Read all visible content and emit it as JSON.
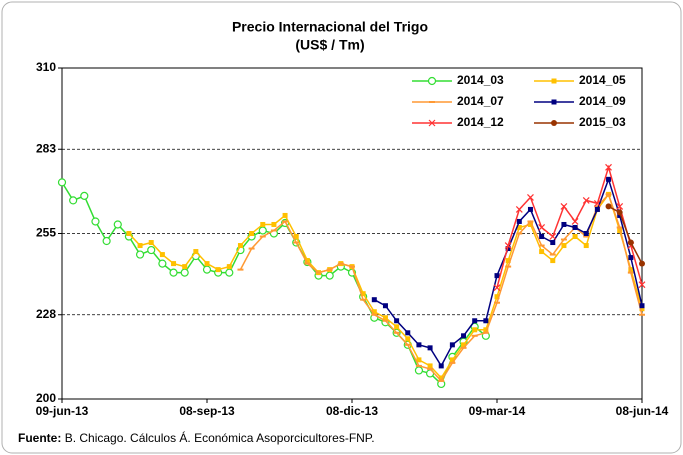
{
  "chart_data": {
    "type": "line",
    "title": "Precio Internacional del Trigo",
    "subtitle": "(US$ / Tm)",
    "source_label": "Fuente:",
    "source_text": "B. Chicago. Cálculos Á. Económica Asoporcicultores-FNP.",
    "categories": [
      "09-jun-13",
      null,
      null,
      null,
      null,
      null,
      null,
      null,
      null,
      null,
      null,
      null,
      null,
      "08-sep-13",
      null,
      null,
      null,
      null,
      null,
      null,
      null,
      null,
      null,
      null,
      null,
      null,
      "08-dic-13",
      null,
      null,
      null,
      null,
      null,
      null,
      null,
      null,
      null,
      null,
      null,
      null,
      "09-mar-14",
      null,
      null,
      null,
      null,
      null,
      null,
      null,
      null,
      null,
      null,
      null,
      null,
      "08-jun-14"
    ],
    "ylim": [
      200,
      310
    ],
    "yticks": [
      200,
      228,
      255,
      283,
      310
    ],
    "grid": true,
    "series": [
      {
        "name": "2014_03",
        "color": "#33dd33",
        "marker": "circle",
        "values": [
          272,
          266,
          267.5,
          259,
          252.5,
          258,
          254,
          248,
          249.5,
          245,
          242,
          242,
          247.5,
          243,
          242,
          242,
          249.5,
          254,
          256,
          255,
          258.5,
          252,
          245.5,
          241,
          241,
          244,
          242,
          234,
          227,
          225.5,
          222,
          218,
          209.5,
          208.5,
          205,
          214,
          219,
          224,
          221,
          null,
          null,
          null,
          null,
          null,
          null,
          null,
          null,
          null,
          null,
          null,
          null,
          null,
          null
        ]
      },
      {
        "name": "2014_05",
        "color": "#ffc000",
        "marker": "square",
        "values": [
          null,
          null,
          null,
          null,
          null,
          null,
          255,
          251,
          252,
          248,
          245,
          244,
          249,
          245,
          243,
          244,
          251,
          255,
          258,
          258,
          261,
          254,
          246,
          242,
          243,
          245,
          244,
          235,
          229,
          227,
          224,
          220,
          213,
          211,
          207,
          213,
          218,
          223,
          223,
          234,
          246,
          257,
          258,
          249,
          246,
          251,
          254,
          251,
          263,
          268,
          256,
          243,
          230
        ]
      },
      {
        "name": "2014_07",
        "color": "#ff9933",
        "marker": "dash",
        "values": [
          null,
          null,
          null,
          null,
          null,
          null,
          null,
          null,
          null,
          null,
          null,
          null,
          null,
          null,
          null,
          null,
          243,
          250,
          254,
          256,
          259,
          252,
          245,
          242,
          243,
          245,
          244,
          233,
          228,
          226,
          222,
          218,
          211,
          210,
          206,
          212,
          217,
          221,
          222,
          232,
          244,
          255,
          259,
          251,
          248,
          253,
          257,
          254,
          264,
          268,
          257,
          242,
          228
        ]
      },
      {
        "name": "2014_09",
        "color": "#000080",
        "marker": "square",
        "values": [
          null,
          null,
          null,
          null,
          null,
          null,
          null,
          null,
          null,
          null,
          null,
          null,
          null,
          null,
          null,
          null,
          null,
          null,
          null,
          null,
          null,
          null,
          null,
          null,
          null,
          null,
          null,
          null,
          233,
          231,
          226,
          222,
          218,
          217,
          211,
          218,
          221,
          226,
          226,
          241,
          250,
          259,
          263,
          254,
          252,
          258,
          257,
          255,
          263,
          273,
          261,
          247,
          231
        ]
      },
      {
        "name": "2014_12",
        "color": "#ff3333",
        "marker": "x",
        "values": [
          null,
          null,
          null,
          null,
          null,
          null,
          null,
          null,
          null,
          null,
          null,
          null,
          null,
          null,
          null,
          null,
          null,
          null,
          null,
          null,
          null,
          null,
          null,
          null,
          null,
          null,
          null,
          null,
          null,
          null,
          null,
          null,
          null,
          null,
          null,
          null,
          null,
          null,
          null,
          237,
          251,
          263,
          267,
          257,
          254,
          264,
          259,
          266,
          265,
          277,
          264,
          251,
          238
        ]
      },
      {
        "name": "2015_03",
        "color": "#993300",
        "marker": "dot",
        "values": [
          null,
          null,
          null,
          null,
          null,
          null,
          null,
          null,
          null,
          null,
          null,
          null,
          null,
          null,
          null,
          null,
          null,
          null,
          null,
          null,
          null,
          null,
          null,
          null,
          null,
          null,
          null,
          null,
          null,
          null,
          null,
          null,
          null,
          null,
          null,
          null,
          null,
          null,
          null,
          null,
          null,
          null,
          null,
          null,
          null,
          null,
          null,
          null,
          null,
          264,
          262,
          252,
          245
        ]
      }
    ]
  }
}
